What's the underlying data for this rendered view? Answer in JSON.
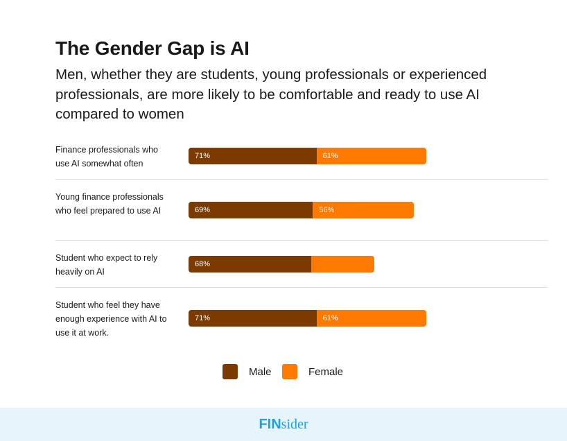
{
  "header": {
    "title": "The Gender Gap is AI",
    "subtitle": "Men, whether they are students, young professionals or experienced professionals, are more likely to be comfortable and ready to use AI compared to women"
  },
  "chart_data": {
    "type": "bar",
    "orientation": "horizontal",
    "stacked": true,
    "categories": [
      "Finance professionals who use AI somewhat often",
      "Young finance professionals who feel prepared to use AI",
      "Student who expect to rely heavily on AI",
      "Student who feel they have enough experience with AI to use it at work."
    ],
    "series": [
      {
        "name": "Male",
        "color": "#7b3b00",
        "values": [
          71,
          69,
          68,
          71
        ],
        "labels": [
          "71%",
          "69%",
          "68%",
          "71%"
        ]
      },
      {
        "name": "Female",
        "color": "#ff7a00",
        "values": [
          61,
          56,
          35,
          61
        ],
        "labels": [
          "61%",
          "56%",
          "",
          "61%"
        ]
      }
    ],
    "grid": false,
    "legend_position": "bottom"
  },
  "legend": {
    "items": [
      {
        "label": "Male",
        "color": "#7b3b00"
      },
      {
        "label": "Female",
        "color": "#ff7a00"
      }
    ]
  },
  "footer": {
    "brand_strong": "FIN",
    "brand_light": "sider",
    "color": "#1fa3de"
  }
}
